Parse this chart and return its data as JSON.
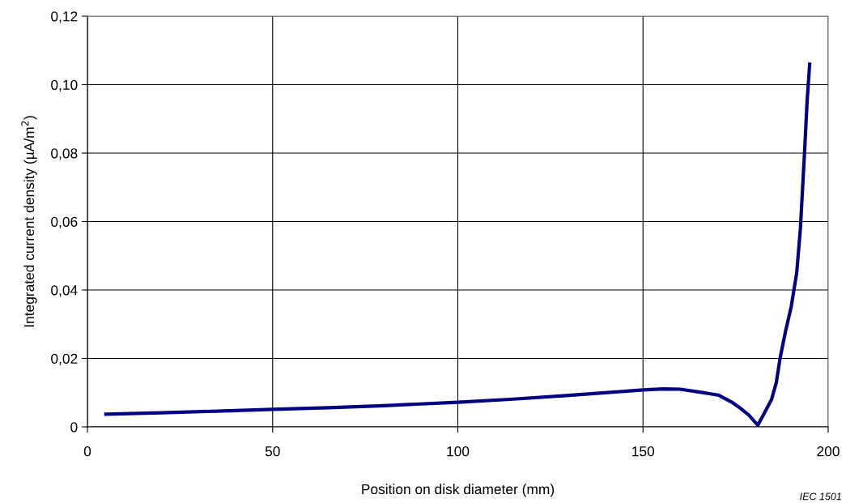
{
  "chart_data": {
    "type": "line",
    "xlabel": "Position on disk diameter (mm)",
    "ylabel": "Integrated current density (µA/m$^{2}$)",
    "annotations": [
      "IEC 1501"
    ],
    "series": [
      {
        "color": "#000080",
        "x": [
          5,
          20,
          35,
          50,
          65,
          80,
          100,
          115,
          130,
          145,
          150,
          155.6,
          160,
          165,
          170.3,
          174,
          176,
          178.5,
          181,
          183,
          184.7,
          186,
          187,
          188.5,
          190,
          191.5,
          192.5,
          193,
          193.7,
          194.3,
          195
        ],
        "values": [
          0.0037,
          0.0041,
          0.0046,
          0.0051,
          0.0056,
          0.0062,
          0.0072,
          0.0081,
          0.0092,
          0.0104,
          0.0108,
          0.0111,
          0.011,
          0.0102,
          0.0093,
          0.0072,
          0.0057,
          0.0035,
          0.0005,
          0.0045,
          0.008,
          0.013,
          0.02,
          0.028,
          0.035,
          0.045,
          0.058,
          0.068,
          0.082,
          0.095,
          0.106
        ]
      }
    ],
    "xlim": [
      0,
      200
    ],
    "xticks": [
      0,
      50,
      100,
      150,
      200
    ],
    "ylim": [
      0,
      0.12
    ],
    "yticks": [
      {
        "value": 0,
        "label": "0"
      },
      {
        "value": 0.02,
        "label": "0,02"
      },
      {
        "value": 0.04,
        "label": "0,04"
      },
      {
        "value": 0.06,
        "label": "0,06"
      },
      {
        "value": 0.08,
        "label": "0,08"
      },
      {
        "value": 0.1,
        "label": "0,10"
      },
      {
        "value": 0.12,
        "label": "0,12"
      }
    ],
    "grid": true,
    "marker": "none",
    "line_style": "solid"
  }
}
